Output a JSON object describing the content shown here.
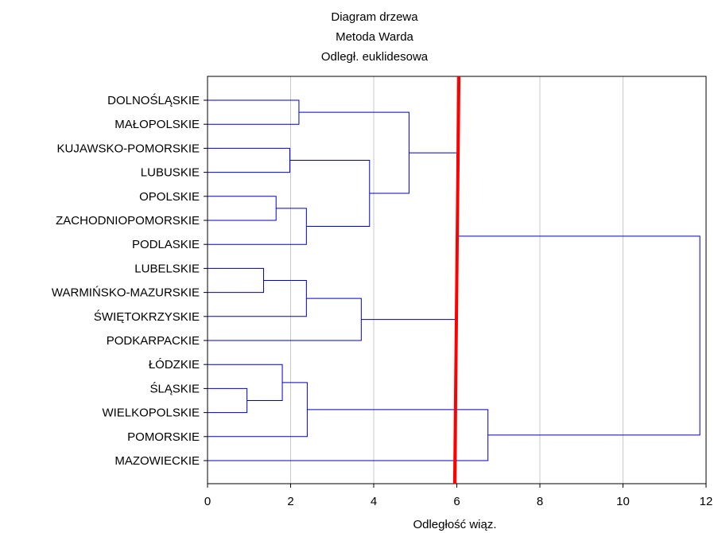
{
  "chart_data": {
    "type": "dendrogram",
    "title_lines": [
      "Diagram drzewa",
      "Metoda Warda",
      "Odległ. euklidesowa"
    ],
    "xlabel": "Odległość wiąz.",
    "xlim": [
      0,
      12
    ],
    "xticks": [
      "0",
      "2",
      "4",
      "6",
      "8",
      "10",
      "12"
    ],
    "grid": true,
    "leaves": [
      "DOLNOŚLĄSKIE",
      "MAŁOPOLSKIE",
      "KUJAWSKO-POMORSKIE",
      "LUBUSKIE",
      "OPOLSKIE",
      "ZACHODNIOPOMORSKIE",
      "PODLASKIE",
      "LUBELSKIE",
      "WARMIŃSKO-MAZURSKIE",
      "ŚWIĘTOKRZYSKIE",
      "PODKARPACKIE",
      "ŁÓDZKIE",
      "ŚLĄSKIE",
      "WIELKOPOLSKIE",
      "POMORSKIE",
      "MAZOWIECKIE"
    ],
    "merges": [
      {
        "a": "L0",
        "b": "L1",
        "height": 2.2
      },
      {
        "a": "L2",
        "b": "L3",
        "height": 1.98
      },
      {
        "a": "L4",
        "b": "L5",
        "height": 1.65
      },
      {
        "a": "C2",
        "b": "L6",
        "height": 2.38
      },
      {
        "a": "C1",
        "b": "C3",
        "height": 3.9
      },
      {
        "a": "C0",
        "b": "C4",
        "height": 4.85
      },
      {
        "a": "L7",
        "b": "L8",
        "height": 1.35
      },
      {
        "a": "C6",
        "b": "L9",
        "height": 2.38
      },
      {
        "a": "C7",
        "b": "L10",
        "height": 3.7
      },
      {
        "a": "L12",
        "b": "L13",
        "height": 0.95
      },
      {
        "a": "L11",
        "b": "C9",
        "height": 1.8
      },
      {
        "a": "C10",
        "b": "L14",
        "height": 2.4
      },
      {
        "a": "C11",
        "b": "L15",
        "height": 6.75
      },
      {
        "a": "C5",
        "b": "C8",
        "height": 6.0
      },
      {
        "a": "C13",
        "b": "C12",
        "height": 11.85
      }
    ],
    "cut_line": {
      "x_top": 6.05,
      "x_bottom": 5.95,
      "color": "#ff0000"
    },
    "colors": {
      "tree": "#0000cc",
      "grid": "#c8c8c8",
      "frame": "#000000",
      "cut": "#ff0000"
    }
  }
}
